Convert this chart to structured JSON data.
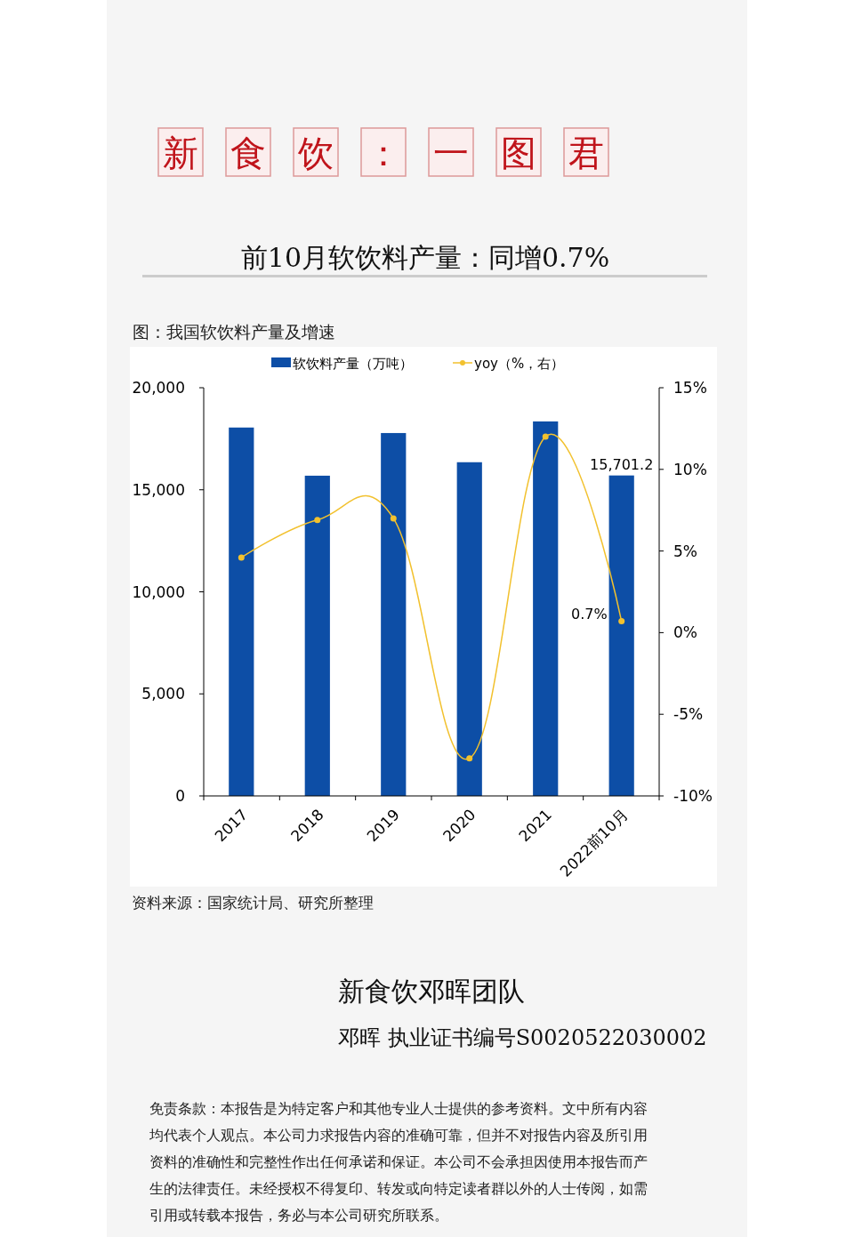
{
  "chart_data": {
    "type": "bar",
    "title": "前10月软饮料产量：同增0.7%",
    "subtitle": "图：我国软饮料产量及增速",
    "annotations": [
      "新食饮：一图君",
      "资料来源：国家统计局、研究所整理",
      "新食饮邓晖团队",
      "邓晖  执业证书编号S0020522030002",
      "免责条款：本报告是为特定客户和其他专业人士提供的参考资料。文中所有内容均代表个人观点。本公司力求报告内容的准确可靠，但并不对报告内容及所引用资料的准确性和完整性作出任何承诺和保证。本公司不会承担因使用本报告而产生的法律责任。未经授权不得复印、转发或向特定读者群以外的人士传阅，如需引用或转载本报告，务必与本公司研究所联系。"
    ],
    "categories": [
      "2017",
      "2018",
      "2019",
      "2020",
      "2021",
      "2022前10月"
    ],
    "series": [
      {
        "name": "软饮料产量（万吨）",
        "color": "#0d4ea6",
        "values": [
          18050,
          15690,
          17780,
          16350,
          18350,
          15701.2
        ],
        "value_labels": [
          null,
          null,
          null,
          null,
          null,
          "15,701.2"
        ]
      },
      {
        "name": "yoy（%，右）",
        "type": "line",
        "axis": "y2",
        "color": "#f2c12e",
        "marker": "circle",
        "values": [
          4.6,
          6.9,
          7.0,
          -7.7,
          12.0,
          0.7
        ],
        "value_labels": [
          null,
          null,
          null,
          null,
          null,
          "0.7%"
        ]
      }
    ],
    "ylim": [
      0,
      20000
    ],
    "yticks": [
      0,
      {
        "value": 5000,
        "label": "5,000"
      },
      {
        "value": 10000,
        "label": "10,000"
      },
      {
        "value": 15000,
        "label": "15,000"
      },
      {
        "value": 20000,
        "label": "20,000"
      }
    ],
    "y2lim": [
      -10,
      15
    ],
    "y2ticks": [
      {
        "value": -10,
        "label": "-10%"
      },
      {
        "value": -5,
        "label": "-5%"
      },
      {
        "value": 0,
        "label": "0%"
      },
      {
        "value": 5,
        "label": "5%"
      },
      {
        "value": 10,
        "label": "10%"
      },
      {
        "value": 15,
        "label": "15%"
      }
    ],
    "legend": "top",
    "grid": false
  }
}
